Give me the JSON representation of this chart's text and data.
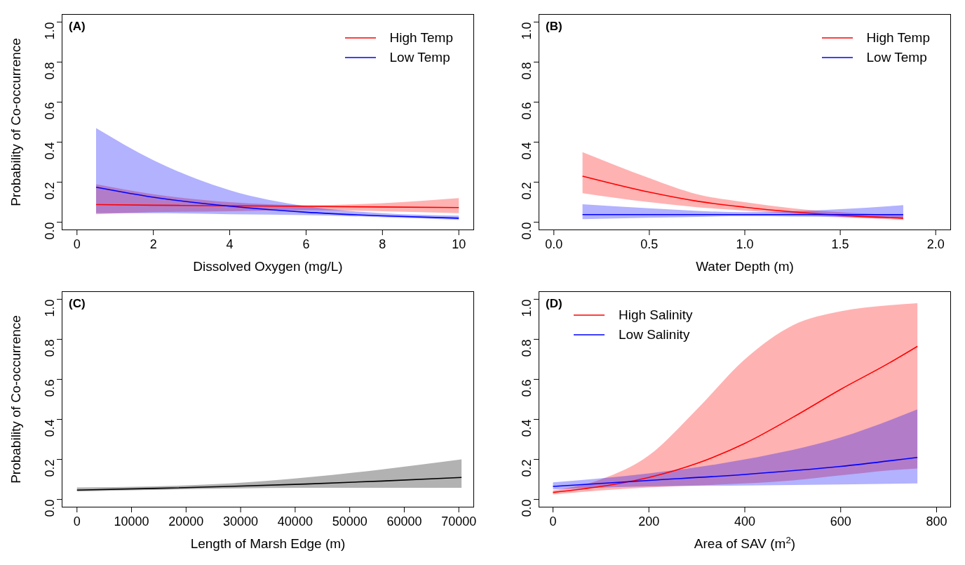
{
  "chart_data": [
    {
      "type": "line",
      "title": "(A)",
      "xlabel": "Dissolved Oxygen (mg/L)",
      "ylabel": "Probability of Co-occurrence",
      "xlim": [
        -0.4,
        10.4
      ],
      "xticks": [
        0,
        2,
        4,
        6,
        8,
        10
      ],
      "ylim": [
        -0.04,
        1.04
      ],
      "yticks": [
        {
          "value": 0,
          "label": "0.0"
        },
        {
          "value": 0.2,
          "label": "0.2"
        },
        {
          "value": 0.4,
          "label": "0.4"
        },
        {
          "value": 0.6,
          "label": "0.6"
        },
        {
          "value": 0.8,
          "label": "0.8"
        },
        {
          "value": 1,
          "label": "1.0"
        }
      ],
      "grid": false,
      "legend": "top right",
      "series": [
        {
          "name": "High Temp",
          "color": "#ff0000",
          "x": [
            0.5,
            2,
            4,
            6,
            8,
            10
          ],
          "values": [
            0.088,
            0.085,
            0.082,
            0.079,
            0.076,
            0.073
          ],
          "lower": [
            0.04,
            0.05,
            0.055,
            0.06,
            0.055,
            0.045
          ],
          "upper": [
            0.19,
            0.14,
            0.1,
            0.085,
            0.095,
            0.12
          ]
        },
        {
          "name": "Low Temp",
          "color": "#0000ff",
          "x": [
            0.5,
            2,
            4,
            6,
            8,
            10
          ],
          "values": [
            0.175,
            0.125,
            0.08,
            0.05,
            0.032,
            0.02
          ],
          "lower": [
            0.045,
            0.045,
            0.04,
            0.035,
            0.025,
            0.012
          ],
          "upper": [
            0.47,
            0.31,
            0.16,
            0.08,
            0.045,
            0.033
          ]
        }
      ]
    },
    {
      "type": "line",
      "title": "(B)",
      "xlabel": "Water Depth (m)",
      "xlim": [
        -0.08,
        2.08
      ],
      "xticks": [
        {
          "value": 0,
          "label": "0.0"
        },
        {
          "value": 0.5,
          "label": "0.5"
        },
        {
          "value": 1,
          "label": "1.0"
        },
        {
          "value": 1.5,
          "label": "1.5"
        },
        {
          "value": 2,
          "label": "2.0"
        }
      ],
      "ylim": [
        -0.04,
        1.04
      ],
      "yticks": [
        {
          "value": 0,
          "label": "0.0"
        },
        {
          "value": 0.2,
          "label": "0.2"
        },
        {
          "value": 0.4,
          "label": "0.4"
        },
        {
          "value": 0.6,
          "label": "0.6"
        },
        {
          "value": 0.8,
          "label": "0.8"
        },
        {
          "value": 1,
          "label": "1.0"
        }
      ],
      "grid": false,
      "legend": "top right",
      "series": [
        {
          "name": "High Temp",
          "color": "#ff0000",
          "x": [
            0.15,
            0.5,
            0.75,
            1.0,
            1.25,
            1.5,
            1.83
          ],
          "values": [
            0.23,
            0.15,
            0.105,
            0.075,
            0.052,
            0.035,
            0.02
          ],
          "lower": [
            0.145,
            0.1,
            0.075,
            0.058,
            0.042,
            0.027,
            0.012
          ],
          "upper": [
            0.35,
            0.22,
            0.14,
            0.1,
            0.07,
            0.05,
            0.035
          ]
        },
        {
          "name": "Low Temp",
          "color": "#0000ff",
          "x": [
            0.15,
            0.5,
            1.0,
            1.5,
            1.83
          ],
          "values": [
            0.038,
            0.038,
            0.038,
            0.038,
            0.038
          ],
          "lower": [
            0.015,
            0.022,
            0.03,
            0.025,
            0.018
          ],
          "upper": [
            0.09,
            0.07,
            0.05,
            0.065,
            0.085
          ]
        }
      ]
    },
    {
      "type": "line",
      "title": "(C)",
      "xlabel": "Length of Marsh Edge (m)",
      "ylabel": "Probability of Co-occurrence",
      "xlim": [
        -2800,
        72800
      ],
      "xticks": [
        0,
        10000,
        20000,
        30000,
        40000,
        50000,
        60000,
        70000
      ],
      "ylim": [
        -0.04,
        1.04
      ],
      "yticks": [
        {
          "value": 0,
          "label": "0.0"
        },
        {
          "value": 0.2,
          "label": "0.2"
        },
        {
          "value": 0.4,
          "label": "0.4"
        },
        {
          "value": 0.6,
          "label": "0.6"
        },
        {
          "value": 0.8,
          "label": "0.8"
        },
        {
          "value": 1,
          "label": "1.0"
        }
      ],
      "grid": false,
      "legend": false,
      "series": [
        {
          "color": "#000000",
          "x": [
            0,
            14000,
            28000,
            42000,
            56000,
            70500
          ],
          "values": [
            0.047,
            0.055,
            0.065,
            0.077,
            0.092,
            0.11
          ],
          "lower": [
            0.04,
            0.048,
            0.055,
            0.058,
            0.058,
            0.058
          ],
          "upper": [
            0.06,
            0.065,
            0.08,
            0.11,
            0.15,
            0.2
          ]
        }
      ]
    },
    {
      "type": "line",
      "title": "(D)",
      "xlabel": "Area of SAV (m$^{2}$)",
      "xlim": [
        -30,
        830
      ],
      "xticks": [
        0,
        200,
        400,
        600,
        800
      ],
      "ylim": [
        -0.04,
        1.04
      ],
      "yticks": [
        {
          "value": 0,
          "label": "0.0"
        },
        {
          "value": 0.2,
          "label": "0.2"
        },
        {
          "value": 0.4,
          "label": "0.4"
        },
        {
          "value": 0.6,
          "label": "0.6"
        },
        {
          "value": 0.8,
          "label": "0.8"
        },
        {
          "value": 1,
          "label": "1.0"
        }
      ],
      "grid": false,
      "legend": "top left",
      "series": [
        {
          "name": "High Salinity",
          "color": "#ff0000",
          "x": [
            0,
            100,
            200,
            300,
            400,
            500,
            600,
            700,
            760
          ],
          "values": [
            0.035,
            0.065,
            0.11,
            0.18,
            0.28,
            0.41,
            0.55,
            0.68,
            0.765
          ],
          "lower": [
            0.025,
            0.045,
            0.06,
            0.07,
            0.08,
            0.095,
            0.12,
            0.145,
            0.155
          ],
          "upper": [
            0.045,
            0.1,
            0.22,
            0.45,
            0.7,
            0.87,
            0.94,
            0.97,
            0.98
          ]
        },
        {
          "name": "Low Salinity",
          "color": "#0000ff",
          "x": [
            0,
            200,
            400,
            600,
            760
          ],
          "values": [
            0.065,
            0.095,
            0.125,
            0.165,
            0.21
          ],
          "lower": [
            0.05,
            0.065,
            0.07,
            0.075,
            0.08
          ],
          "upper": [
            0.085,
            0.13,
            0.2,
            0.31,
            0.45
          ]
        }
      ]
    }
  ]
}
